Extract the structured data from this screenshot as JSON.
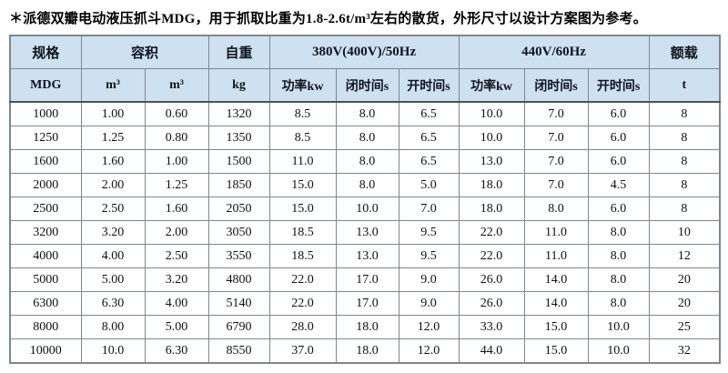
{
  "page": {
    "note": "＊派德双瓣电动液压抓斗MDG，用于抓取比重为1.8-2.6t/m³左右的散货，外形尺寸以设计方案图为参考。"
  },
  "colors": {
    "header_bg": "#cde1f0",
    "border_gray": "#7d8791",
    "header_divider": "#4a525a",
    "text": "#111111",
    "page_bg": "#ffffff"
  },
  "table": {
    "group_headers": [
      {
        "label": "规格",
        "colspan": 1
      },
      {
        "label": "容积",
        "colspan": 2
      },
      {
        "label": "自重",
        "colspan": 1
      },
      {
        "label": "380V(400V)/50Hz",
        "colspan": 3
      },
      {
        "label": "440V/60Hz",
        "colspan": 3
      },
      {
        "label": "额载",
        "colspan": 1
      }
    ],
    "unit_headers": [
      "MDG",
      "m³",
      "m³",
      "kg",
      "功率kw",
      "闭时间s",
      "开时间s",
      "功率kw",
      "闭时间s",
      "开时间s",
      "t"
    ],
    "rows": [
      [
        "1000",
        "1.00",
        "0.60",
        "1320",
        "8.5",
        "8.0",
        "6.5",
        "10.0",
        "7.0",
        "6.0",
        "8"
      ],
      [
        "1250",
        "1.25",
        "0.80",
        "1350",
        "8.5",
        "8.0",
        "6.5",
        "10.0",
        "7.0",
        "6.0",
        "8"
      ],
      [
        "1600",
        "1.60",
        "1.00",
        "1500",
        "11.0",
        "8.0",
        "6.5",
        "13.0",
        "7.0",
        "6.0",
        "8"
      ],
      [
        "2000",
        "2.00",
        "1.25",
        "1850",
        "15.0",
        "8.0",
        "5.0",
        "18.0",
        "7.0",
        "4.5",
        "8"
      ],
      [
        "2500",
        "2.50",
        "1.60",
        "2050",
        "15.0",
        "10.0",
        "7.0",
        "18.0",
        "8.0",
        "6.0",
        "8"
      ],
      [
        "3200",
        "3.20",
        "2.00",
        "3050",
        "18.5",
        "13.0",
        "9.5",
        "22.0",
        "11.0",
        "8.0",
        "10"
      ],
      [
        "4000",
        "4.00",
        "2.50",
        "3550",
        "18.5",
        "13.0",
        "9.5",
        "22.0",
        "11.0",
        "8.0",
        "12"
      ],
      [
        "5000",
        "5.00",
        "3.20",
        "4800",
        "22.0",
        "17.0",
        "9.0",
        "26.0",
        "14.0",
        "8.0",
        "20"
      ],
      [
        "6300",
        "6.30",
        "4.00",
        "5140",
        "22.0",
        "17.0",
        "9.0",
        "26.0",
        "14.0",
        "8.0",
        "20"
      ],
      [
        "8000",
        "8.00",
        "5.00",
        "6790",
        "28.0",
        "18.0",
        "12.0",
        "33.0",
        "15.0",
        "10.0",
        "25"
      ],
      [
        "10000",
        "10.0",
        "6.30",
        "8550",
        "37.0",
        "18.0",
        "12.0",
        "44.0",
        "15.0",
        "10.0",
        "32"
      ]
    ]
  }
}
